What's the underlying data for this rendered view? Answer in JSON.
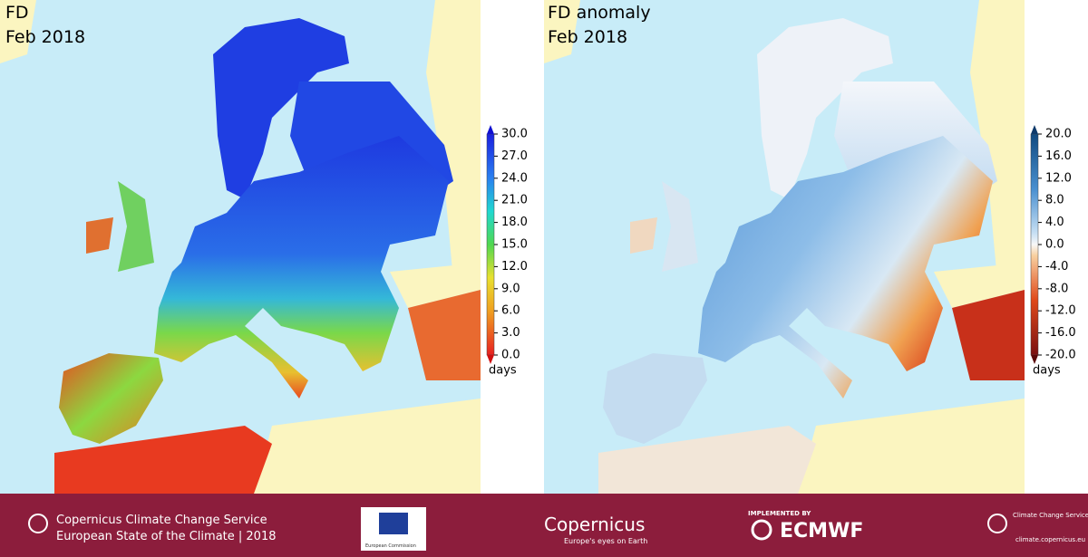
{
  "panels": [
    {
      "title": "FD",
      "subtitle": "Feb 2018",
      "colorbar": {
        "ticks": [
          {
            "value": 30,
            "label": "30.0"
          },
          {
            "value": 27,
            "label": "27.0"
          },
          {
            "value": 24,
            "label": "24.0"
          },
          {
            "value": 21,
            "label": "21.0"
          },
          {
            "value": 18,
            "label": "18.0"
          },
          {
            "value": 15,
            "label": "15.0"
          },
          {
            "value": 12,
            "label": "12.0"
          },
          {
            "value": 9,
            "label": "9.0"
          },
          {
            "value": 6,
            "label": "6.0"
          },
          {
            "value": 3,
            "label": "3.0"
          },
          {
            "value": 0,
            "label": "0.0"
          }
        ],
        "unit": "days"
      }
    },
    {
      "title": "FD anomaly",
      "subtitle": "Feb 2018",
      "colorbar": {
        "ticks": [
          {
            "value": 20,
            "label": "20.0"
          },
          {
            "value": 16,
            "label": "16.0"
          },
          {
            "value": 12,
            "label": "12.0"
          },
          {
            "value": 8,
            "label": "8.0"
          },
          {
            "value": 4,
            "label": "4.0"
          },
          {
            "value": 0,
            "label": "0.0"
          },
          {
            "value": -4,
            "label": "-4.0"
          },
          {
            "value": -8,
            "label": "-8.0"
          },
          {
            "value": -12,
            "label": "-12.0"
          },
          {
            "value": -16,
            "label": "-16.0"
          },
          {
            "value": -20,
            "label": "-20.0"
          }
        ],
        "unit": "days"
      }
    }
  ],
  "footer": {
    "service": "Copernicus Climate Change Service",
    "report": "European State of the Climate | 2018",
    "commission": "European Commission",
    "copernicus": "Copernicus",
    "copernicus_tagline": "Europe's eyes on Earth",
    "implemented_by": "IMPLEMENTED BY",
    "ecmwf": "ECMWF",
    "c3s": "Climate Change Service",
    "url": "climate.copernicus.eu"
  }
}
